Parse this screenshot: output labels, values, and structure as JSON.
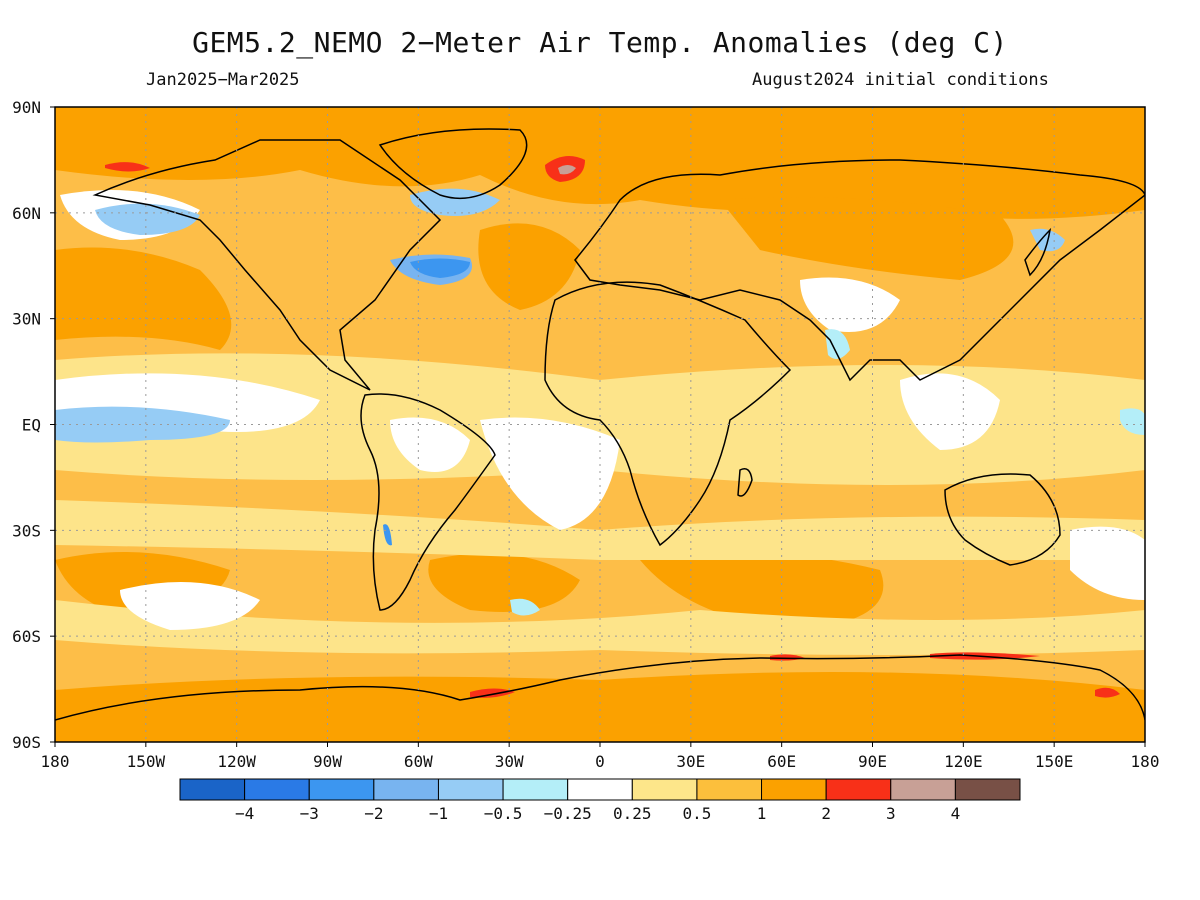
{
  "title": "GEM5.2_NEMO 2−Meter Air Temp. Anomalies (deg C)",
  "period": "Jan2025−Mar2025",
  "init": "August2024 initial conditions",
  "lat_labels": [
    "90N",
    "60N",
    "30N",
    "EQ",
    "30S",
    "60S",
    "90S"
  ],
  "lon_labels": [
    "180",
    "150W",
    "120W",
    "90W",
    "60W",
    "30W",
    "0",
    "30E",
    "60E",
    "90E",
    "120E",
    "150E",
    "180"
  ],
  "colorbar": {
    "colors": [
      "#1a64c8",
      "#2a7ae6",
      "#3c96f0",
      "#78b4f0",
      "#96ccf5",
      "#b4eef8",
      "#ffffff",
      "#fde68a",
      "#fcbf3c",
      "#fba100",
      "#f83018",
      "#c8a096",
      "#785046"
    ],
    "labels": [
      "−4",
      "−3",
      "−2",
      "−1",
      "−0.5",
      "−0.25",
      "0.25",
      "0.5",
      "1",
      "2",
      "3",
      "4"
    ]
  },
  "field_colors": {
    "base": "#fdbe48",
    "warm": "#fba100",
    "mild": "#fde48a",
    "neutral": "#ffffff",
    "cool1": "#b4eef8",
    "cool2": "#96ccf5",
    "cool3": "#78b4f0",
    "cool4": "#3c96f0",
    "hot": "#f83018",
    "hot2": "#c8a096",
    "land_line": "#000000"
  }
}
